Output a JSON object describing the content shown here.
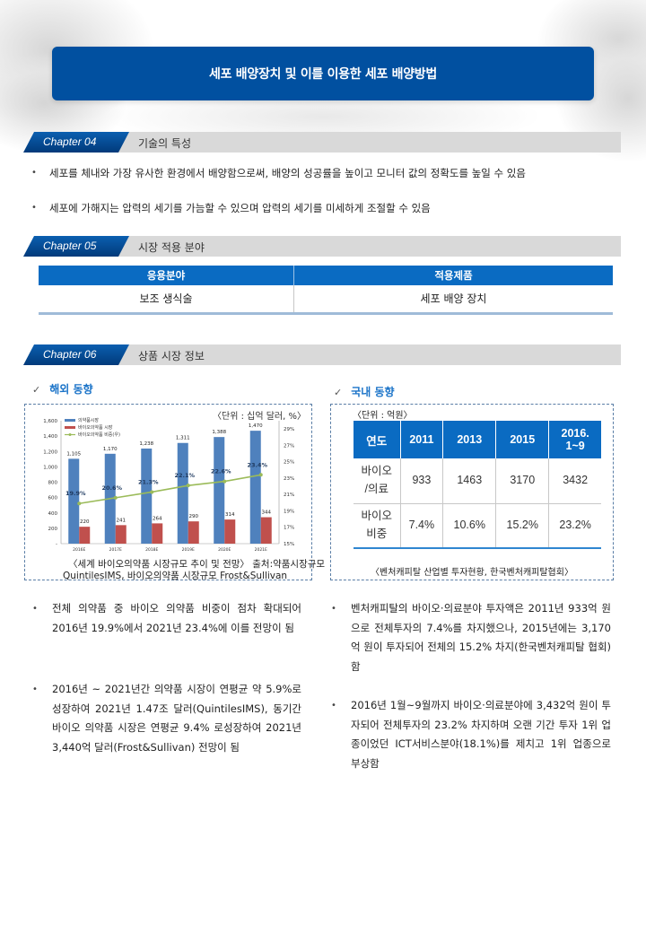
{
  "title": "세포 배양장치 및 이를 이용한 세포 배양방법",
  "chapters": [
    {
      "tag": "Chapter 04",
      "label": "기술의 특성"
    },
    {
      "tag": "Chapter 05",
      "label": "시장 적용 분야"
    },
    {
      "tag": "Chapter 06",
      "label": "상품 시장 정보"
    }
  ],
  "features": [
    "세포를 체내와 가장 유사한 환경에서 배양함으로써, 배양의 성공률을 높이고 모니터 값의 정확도를 높일 수 있음",
    "세포에 가해지는 압력의 세기를 가늠할 수 있으며 압력의 세기를 미세하게 조절할 수 있음"
  ],
  "bullet_glyph": "•",
  "applications": {
    "headers": [
      "응용분야",
      "적용제품"
    ],
    "rows": [
      [
        "보조 생식술",
        "세포 배양 장치"
      ]
    ]
  },
  "market": {
    "check_glyph": "✓",
    "overseas": {
      "heading": "해외 동향",
      "unit": "〈단위 : 십억 달러, %〉",
      "caption_line1": "〈세계 바이오의약품 시장규모 추이 및 전망〉 출처:약품시장규모",
      "caption_line2": "QuintilesIMS, 바이오의약품 시장규모 Frost&Sullivan",
      "paragraphs": [
        "전체 의약품 중 바이오 의약품 비중이 점차 확대되어 2016년 19.9%에서 2021년 23.4%에 이를 전망이 됨",
        "2016년 ~ 2021년간 의약품 시장이 연평균 약 5.9%로 성장하여 2021년 1.47조 달러(QuintilesIMS), 동기간 바이오 의약품 시장은 연평균 9.4% 로성장하여 2021년 3,440억 달러(Frost&Sullivan) 전망이 됨"
      ]
    },
    "domestic": {
      "heading": "국내 동향",
      "unit": "〈단위 : 억원〉",
      "table": {
        "headers": [
          "연도",
          "2011",
          "2013",
          "2015",
          "2016.\n1~9"
        ],
        "rows": [
          [
            "바이오\n/의료",
            "933",
            "1463",
            "3170",
            "3432"
          ],
          [
            "바이오\n비중",
            "7.4%",
            "10.6%",
            "15.2%",
            "23.2%"
          ]
        ]
      },
      "source": "〈벤처캐피탈 산업별 투자현황, 한국벤처캐피탈협회〉",
      "paragraphs": [
        "벤처캐피탈의 바이오·의료분야 투자액은 2011년 933억 원으로 전체투자의 7.4%를 차지했으나, 2015년에는 3,170억 원이 투자되어 전체의 15.2% 차지(한국벤처캐피탈 협회)함",
        "2016년 1월~9월까지 바이오·의료분야에 3,432억 원이 투자되어 전체투자의 23.2% 차지하며 오랜 기간 투자 1위 업종이었던 ICT서비스분야(18.1%)를 제치고 1위 업종으로 부상함"
      ]
    }
  },
  "colors": {
    "title_bar": "#0150a0",
    "table_header": "#0a6bc2",
    "bar_market": "#4f81bd",
    "bar_bio": "#c0504d",
    "line_share": "#9bbb59",
    "subhead": "#1a73c8"
  },
  "chart_data": {
    "type": "bar",
    "title": "세계 바이오의약품 시장규모 추이 및 전망",
    "categories": [
      "2016E",
      "2017E",
      "2018E",
      "2019E",
      "2020E",
      "2021E"
    ],
    "series": [
      {
        "name": "의약품시장",
        "type": "bar",
        "axis": "left",
        "values": [
          1105,
          1170,
          1238,
          1311,
          1388,
          1470
        ]
      },
      {
        "name": "바이오의약품 시장",
        "type": "bar",
        "axis": "left",
        "values": [
          220,
          241,
          264,
          290,
          314,
          344
        ]
      },
      {
        "name": "바이오의약품 비중(우)",
        "type": "line",
        "axis": "right",
        "values": [
          19.9,
          20.6,
          21.3,
          22.1,
          22.6,
          23.4
        ]
      }
    ],
    "value_labels": {
      "market": [
        "1,105",
        "1,170",
        "1,238",
        "1,311",
        "1,388",
        "1,470"
      ],
      "bio": [
        "220",
        "241",
        "264",
        "290",
        "314",
        "344"
      ],
      "share": [
        "19.9%",
        "20.6%",
        "21.3%",
        "22.1%",
        "22.6%",
        "23.4%"
      ]
    },
    "y_left": {
      "ticks": [
        "-",
        "200",
        "400",
        "600",
        "800",
        "1,000",
        "1,200",
        "1,400",
        "1,600"
      ],
      "range": [
        0,
        1600
      ]
    },
    "y_right": {
      "ticks": [
        "15%",
        "17%",
        "19%",
        "21%",
        "23%",
        "25%",
        "27%",
        "29%"
      ],
      "range": [
        15,
        30
      ]
    },
    "legend_position": "top-left",
    "unit": "십억 달러, %"
  }
}
